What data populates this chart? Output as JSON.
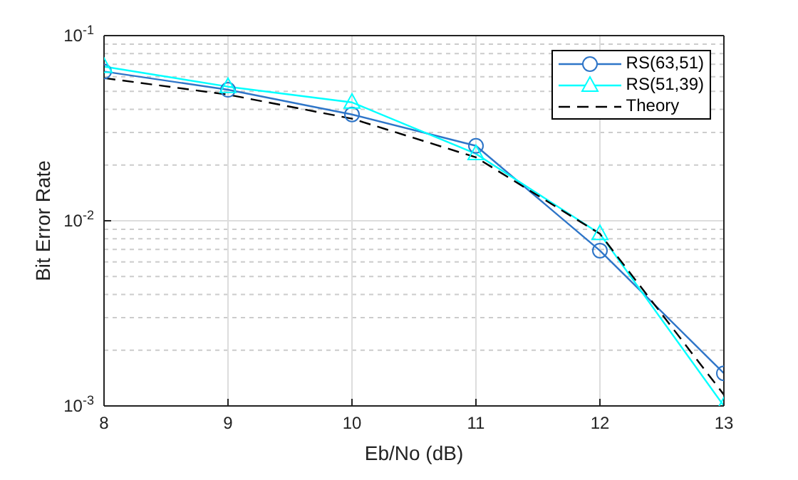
{
  "chart_data": {
    "type": "line",
    "xlabel": "Eb/No (dB)",
    "ylabel": "Bit Error Rate",
    "x": [
      8,
      9,
      10,
      11,
      12,
      13
    ],
    "log": "y",
    "xlim": [
      8,
      13
    ],
    "xticks": [
      8,
      9,
      10,
      11,
      12,
      13
    ],
    "ylim": [
      0.001,
      0.1
    ],
    "yticks": [
      {
        "value": 0.001,
        "label": "10$^{-3}$"
      },
      {
        "value": 0.01,
        "label": "10$^{-2}$"
      },
      {
        "value": 0.1,
        "label": "10$^{-1}$"
      }
    ],
    "grid": true,
    "legend": "top right",
    "series": [
      {
        "name": "RS(63,51)",
        "color": "#2e75c8",
        "marker": "circle",
        "line_style": "solid",
        "values": [
          0.064,
          0.051,
          0.0375,
          0.0254,
          0.0069,
          0.0015
        ]
      },
      {
        "name": "RS(51,39)",
        "color": "#00ffff",
        "marker": "triangle",
        "line_style": "solid",
        "values": [
          0.068,
          0.053,
          0.0436,
          0.023,
          0.0085,
          0.001
        ]
      },
      {
        "name": "Theory",
        "color": "#000000",
        "marker": "none",
        "line_style": "dashed",
        "values": [
          0.059,
          0.048,
          0.0356,
          0.022,
          0.0085,
          0.00115
        ]
      }
    ]
  }
}
